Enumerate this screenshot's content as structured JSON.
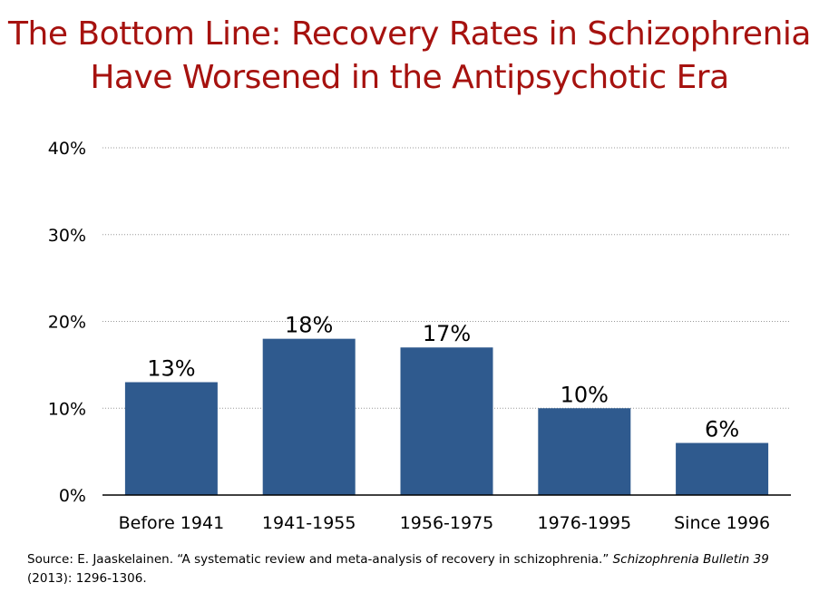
{
  "slide": {
    "title_line1": "The Bottom Line: Recovery Rates in Schizophrenia",
    "title_line2": "Have Worsened in the Antipsychotic Era",
    "source_prefix": "Source:  E. Jaaskelainen. “A systematic review and meta-analysis of recovery in schizophrenia.” ",
    "source_journal": "Schizophrenia Bulletin 39",
    "source_suffix": "(2013): 1296-1306."
  },
  "colors": {
    "title": "#a6120f",
    "bar": "#2f5a8e",
    "grid": "#999999",
    "axis": "#000000"
  },
  "chart_data": {
    "type": "bar",
    "categories": [
      "Before 1941",
      "1941-1955",
      "1956-1975",
      "1976-1995",
      "Since 1996"
    ],
    "values": [
      13,
      18,
      17,
      10,
      6
    ],
    "data_labels": [
      "13%",
      "18%",
      "17%",
      "10%",
      "6%"
    ],
    "yticks": [
      "0%",
      "10%",
      "20%",
      "30%",
      "40%"
    ],
    "ytick_values": [
      0,
      10,
      20,
      30,
      40
    ],
    "ylim": [
      0,
      40
    ],
    "grid": true,
    "grid_style": "dotted",
    "legend": "none"
  }
}
